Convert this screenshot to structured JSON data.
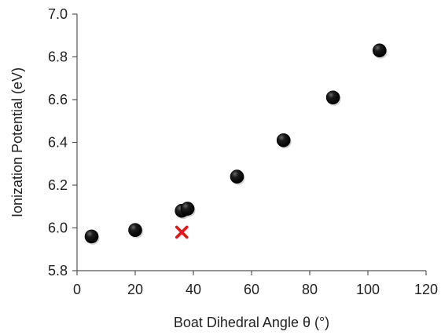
{
  "chart_data": {
    "type": "scatter",
    "xlabel": "Boat Dihedral Angle θ (°)",
    "ylabel": "Ionization Potential (eV)",
    "xlim": [
      0,
      120
    ],
    "ylim": [
      5.8,
      7.0
    ],
    "xticks": [
      0,
      20,
      40,
      60,
      80,
      100,
      120
    ],
    "yticks": [
      5.8,
      6.0,
      6.2,
      6.4,
      6.6,
      6.8,
      7.0
    ],
    "ytick_labels": [
      "5.8",
      "6.0",
      "6.2",
      "6.4",
      "6.6",
      "6.8",
      "7.0"
    ],
    "grid": false,
    "series": [
      {
        "marker": "circle",
        "color": "#000000",
        "points": [
          {
            "x": 5,
            "y": 5.96
          },
          {
            "x": 20,
            "y": 5.99
          },
          {
            "x": 36,
            "y": 6.08
          },
          {
            "x": 38,
            "y": 6.09
          },
          {
            "x": 55,
            "y": 6.24
          },
          {
            "x": 71,
            "y": 6.41
          },
          {
            "x": 88,
            "y": 6.61
          },
          {
            "x": 104,
            "y": 6.83
          }
        ]
      },
      {
        "marker": "x",
        "color": "#e8141b",
        "points": [
          {
            "x": 36,
            "y": 5.98
          }
        ]
      }
    ]
  }
}
